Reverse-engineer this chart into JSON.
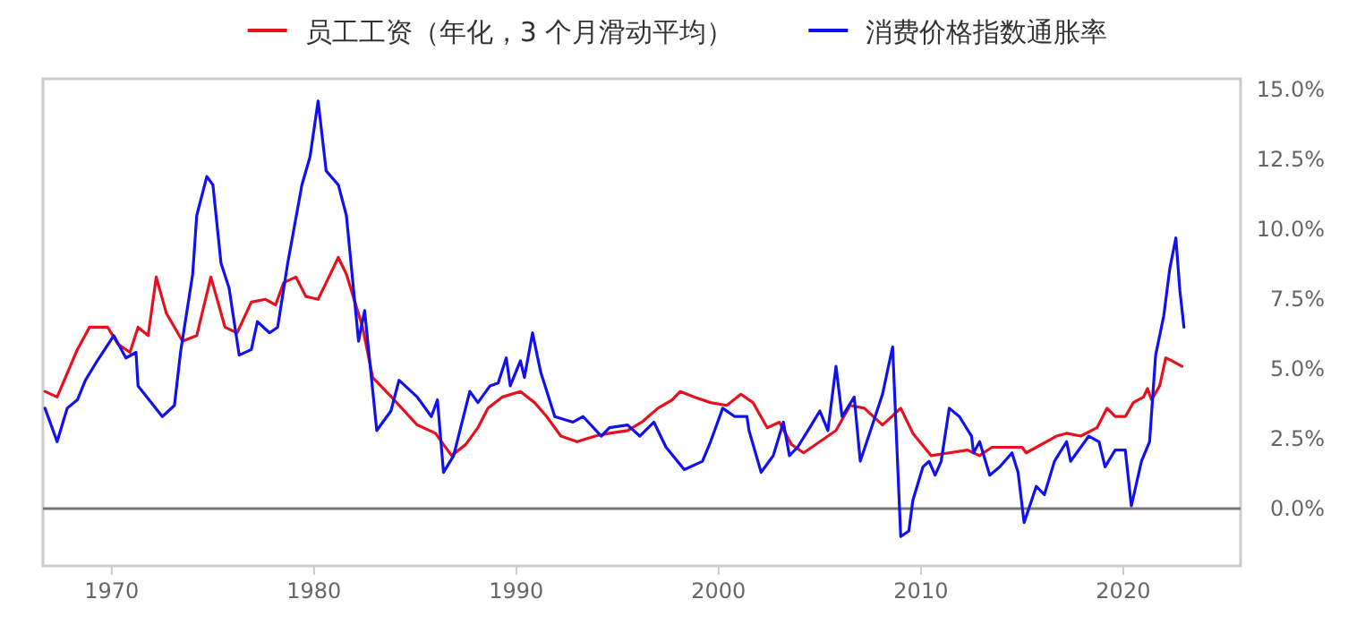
{
  "chart_data": {
    "type": "line",
    "xlim": [
      1966.6,
      2025.8
    ],
    "ylim": [
      -2.05,
      15.4
    ],
    "xticks": [
      1970,
      1980,
      1990,
      2000,
      2010,
      2020
    ],
    "yticks": [
      {
        "value": 0,
        "label": "0.0%"
      },
      {
        "value": 2.5,
        "label": "2.5%"
      },
      {
        "value": 5,
        "label": "5.0%"
      },
      {
        "value": 7.5,
        "label": "7.5%"
      },
      {
        "value": 10,
        "label": "10.0%"
      },
      {
        "value": 12.5,
        "label": "12.5%"
      },
      {
        "value": 15,
        "label": "15.0%"
      }
    ],
    "ref_lines": [
      {
        "axis": "y",
        "value": 0,
        "color": "#777777"
      }
    ],
    "legend": "top",
    "grid": false,
    "marker": "none",
    "line_style": "solid",
    "series": [
      {
        "name": "员工工资（年化，3 个月滑动平均）",
        "color": "#e8101e",
        "x": [
          1966.7,
          1967.3,
          1968.3,
          1968.9,
          1969.8,
          1970.3,
          1970.9,
          1971.3,
          1971.8,
          1972.2,
          1972.7,
          1973.5,
          1974.2,
          1974.9,
          1975.6,
          1976.2,
          1976.9,
          1977.6,
          1978.1,
          1978.5,
          1979.1,
          1979.6,
          1980.2,
          1980.6,
          1981.2,
          1981.6,
          1982.4,
          1982.9,
          1983.7,
          1985.1,
          1986.0,
          1986.8,
          1987.5,
          1988.1,
          1988.6,
          1989.3,
          1990.2,
          1990.9,
          1991.5,
          1992.2,
          1993.0,
          1993.9,
          1994.6,
          1995.5,
          1996.2,
          1997.0,
          1997.7,
          1998.1,
          1998.8,
          1999.6,
          2000.4,
          2001.1,
          2001.7,
          2002.4,
          2003.0,
          2003.6,
          2004.2,
          2005.0,
          2005.8,
          2006.5,
          2007.2,
          2008.1,
          2009.0,
          2009.6,
          2010.5,
          2011.4,
          2012.3,
          2012.9,
          2013.5,
          2015.0,
          2015.2,
          2016.7,
          2017.2,
          2017.9,
          2018.7,
          2019.2,
          2019.6,
          2020.1,
          2020.5,
          2021.0,
          2021.2,
          2021.4,
          2021.8,
          2022.1,
          2022.4,
          2022.9
        ],
        "values": [
          4.2,
          4.0,
          5.7,
          6.5,
          6.5,
          5.9,
          5.6,
          6.5,
          6.2,
          8.3,
          7.0,
          6.0,
          6.2,
          8.3,
          6.5,
          6.3,
          7.4,
          7.5,
          7.3,
          8.1,
          8.3,
          7.6,
          7.5,
          8.1,
          9.0,
          8.4,
          6.5,
          4.7,
          4.1,
          3.0,
          2.7,
          1.9,
          2.3,
          2.9,
          3.6,
          4.0,
          4.2,
          3.8,
          3.3,
          2.6,
          2.4,
          2.6,
          2.7,
          2.8,
          3.1,
          3.6,
          3.9,
          4.2,
          4.0,
          3.8,
          3.7,
          4.1,
          3.8,
          2.9,
          3.1,
          2.3,
          2.0,
          2.4,
          2.8,
          3.7,
          3.6,
          3.0,
          3.6,
          2.7,
          1.9,
          2.0,
          2.1,
          1.9,
          2.2,
          2.2,
          2.0,
          2.6,
          2.7,
          2.6,
          2.9,
          3.6,
          3.3,
          3.3,
          3.8,
          4.0,
          4.3,
          3.9,
          4.4,
          5.4,
          5.3,
          5.1
        ]
      },
      {
        "name": "消费价格指数通胀率",
        "color": "#1010f0",
        "x": [
          1966.7,
          1967.3,
          1967.8,
          1968.3,
          1968.7,
          1969.2,
          1970.1,
          1970.7,
          1971.2,
          1971.3,
          1972.5,
          1973.1,
          1973.4,
          1974.0,
          1974.2,
          1974.7,
          1975.0,
          1975.4,
          1975.8,
          1976.3,
          1976.9,
          1977.2,
          1977.8,
          1978.2,
          1978.7,
          1979.4,
          1979.8,
          1980.2,
          1980.6,
          1981.2,
          1981.6,
          1982.2,
          1982.5,
          1983.1,
          1983.8,
          1984.2,
          1985.1,
          1985.8,
          1986.1,
          1986.4,
          1986.9,
          1987.7,
          1988.1,
          1988.7,
          1989.1,
          1989.5,
          1989.7,
          1990.2,
          1990.4,
          1990.8,
          1991.2,
          1991.9,
          1992.8,
          1993.3,
          1994.2,
          1994.6,
          1995.5,
          1996.1,
          1996.8,
          1997.4,
          1998.3,
          1999.2,
          1999.6,
          2000.2,
          2000.8,
          2001.4,
          2001.5,
          2002.1,
          2002.7,
          2003.2,
          2003.5,
          2003.9,
          2004.5,
          2005.0,
          2005.4,
          2005.8,
          2006.1,
          2006.7,
          2007.0,
          2007.6,
          2008.1,
          2008.6,
          2009.0,
          2009.4,
          2009.6,
          2010.1,
          2010.4,
          2010.7,
          2011.0,
          2011.4,
          2011.9,
          2012.5,
          2012.6,
          2012.9,
          2013.4,
          2013.9,
          2014.5,
          2014.8,
          2015.1,
          2015.7,
          2016.1,
          2016.6,
          2017.2,
          2017.4,
          2018.3,
          2018.8,
          2019.1,
          2019.6,
          2020.1,
          2020.4,
          2020.9,
          2021.3,
          2021.6,
          2022.0,
          2022.3,
          2022.6,
          2022.8,
          2023.0
        ],
        "values": [
          3.6,
          2.4,
          3.6,
          3.9,
          4.6,
          5.2,
          6.2,
          5.4,
          5.6,
          4.4,
          3.3,
          3.7,
          5.6,
          8.4,
          10.5,
          11.9,
          11.6,
          8.8,
          7.9,
          5.5,
          5.7,
          6.7,
          6.3,
          6.5,
          8.8,
          11.6,
          12.6,
          14.6,
          12.1,
          11.6,
          10.5,
          6.0,
          7.1,
          2.8,
          3.5,
          4.6,
          4.0,
          3.3,
          3.9,
          1.3,
          1.9,
          4.2,
          3.8,
          4.4,
          4.5,
          5.4,
          4.4,
          5.3,
          4.7,
          6.3,
          4.9,
          3.3,
          3.1,
          3.3,
          2.6,
          2.9,
          3.0,
          2.6,
          3.1,
          2.2,
          1.4,
          1.7,
          2.4,
          3.6,
          3.3,
          3.3,
          2.8,
          1.3,
          1.9,
          3.1,
          1.9,
          2.2,
          2.9,
          3.5,
          2.8,
          5.1,
          3.3,
          4.0,
          1.7,
          3.0,
          4.1,
          5.8,
          -1.0,
          -0.8,
          0.3,
          1.5,
          1.7,
          1.2,
          1.7,
          3.6,
          3.3,
          2.6,
          2.0,
          2.4,
          1.2,
          1.5,
          2.0,
          1.3,
          -0.5,
          0.8,
          0.5,
          1.7,
          2.4,
          1.7,
          2.6,
          2.4,
          1.5,
          2.1,
          2.1,
          0.1,
          1.7,
          2.4,
          5.5,
          6.9,
          8.6,
          9.7,
          7.8,
          6.5
        ]
      }
    ]
  }
}
